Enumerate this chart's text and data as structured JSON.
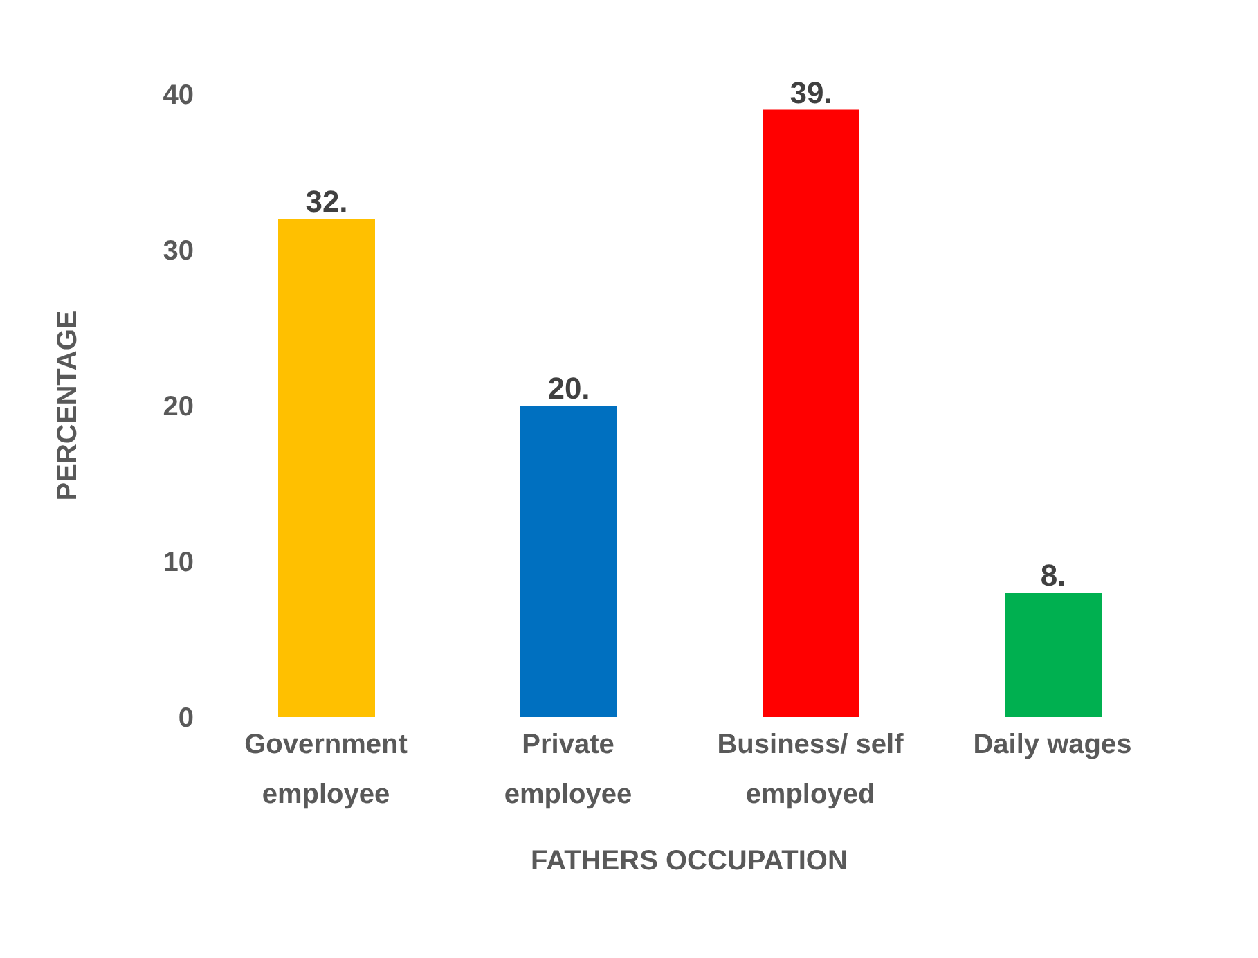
{
  "chart_data": {
    "type": "bar",
    "xlabel": "FATHERS OCCUPATION",
    "ylabel": "PERCENTAGE",
    "categories": [
      "Government employee",
      "Private employee",
      "Business/ self employed",
      "Daily wages"
    ],
    "values": [
      32,
      20,
      39,
      8
    ],
    "colors": [
      "#ffc000",
      "#0070c0",
      "#ff0000",
      "#00b050"
    ],
    "value_labels": [
      "32.",
      "20.",
      "39.",
      "8."
    ],
    "ylim": [
      0,
      40
    ],
    "yticks": [
      0,
      10,
      20,
      30,
      40
    ],
    "grid": false,
    "legend": false
  }
}
